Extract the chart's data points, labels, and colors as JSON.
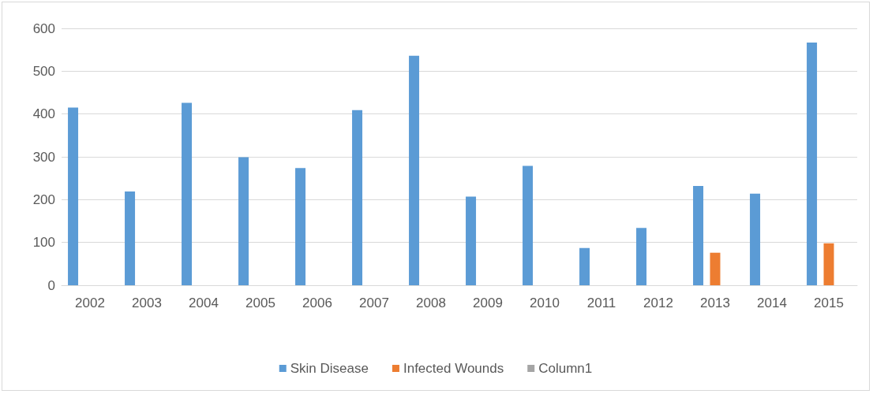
{
  "chart_data": {
    "type": "bar",
    "categories": [
      "2002",
      "2003",
      "2004",
      "2005",
      "2006",
      "2007",
      "2008",
      "2009",
      "2010",
      "2011",
      "2012",
      "2013",
      "2014",
      "2015"
    ],
    "series": [
      {
        "name": "Skin Disease",
        "color": "#5b9bd5",
        "values": [
          415,
          219,
          426,
          299,
          274,
          409,
          536,
          207,
          279,
          87,
          134,
          232,
          214,
          567
        ]
      },
      {
        "name": "Infected Wounds",
        "color": "#ed7d31",
        "values": [
          null,
          null,
          null,
          null,
          null,
          null,
          null,
          null,
          null,
          null,
          null,
          76,
          null,
          98
        ]
      },
      {
        "name": "Column1",
        "color": "#a5a5a5",
        "values": [
          null,
          null,
          null,
          null,
          null,
          null,
          null,
          null,
          null,
          null,
          null,
          null,
          null,
          null
        ]
      }
    ],
    "ylim": [
      0,
      600
    ],
    "yticks": [
      0,
      100,
      200,
      300,
      400,
      500,
      600
    ],
    "grid": "y",
    "legend": "bottom"
  }
}
